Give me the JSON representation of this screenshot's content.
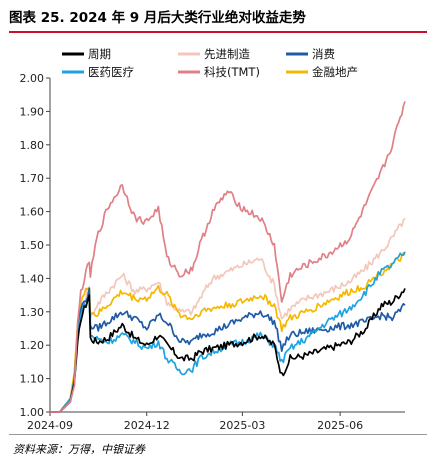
{
  "title": "图表 25. 2024 年 9 月后大类行业绝对收益走势",
  "source": "资料来源：万得，中银证券",
  "chart_data": {
    "type": "line",
    "ylim": [
      1.0,
      2.0
    ],
    "yticks": [
      "1.00",
      "1.10",
      "1.20",
      "1.30",
      "1.40",
      "1.50",
      "1.60",
      "1.70",
      "1.80",
      "1.90",
      "2.00"
    ],
    "xlim": [
      "2024-09-01",
      "2025-08-01"
    ],
    "xticks": [
      "2024-09",
      "2024-12",
      "2025-03",
      "2025-06"
    ],
    "legend_position": "top",
    "grid": false,
    "series": [
      {
        "name": "周期",
        "color": "#000000",
        "x": [
          "2024-09-01",
          "2024-09-10",
          "2024-09-20",
          "2024-09-24",
          "2024-09-27",
          "2024-09-30",
          "2024-10-08",
          "2024-10-09",
          "2024-10-15",
          "2024-10-25",
          "2024-11-08",
          "2024-11-20",
          "2024-12-01",
          "2024-12-12",
          "2024-12-20",
          "2025-01-02",
          "2025-01-13",
          "2025-01-20",
          "2025-02-01",
          "2025-02-15",
          "2025-03-01",
          "2025-03-18",
          "2025-03-31",
          "2025-04-07",
          "2025-04-15",
          "2025-04-30",
          "2025-05-20",
          "2025-06-10",
          "2025-06-25",
          "2025-07-10",
          "2025-07-20",
          "2025-08-01"
        ],
        "y": [
          1.0,
          1.0,
          1.03,
          1.09,
          1.2,
          1.28,
          1.35,
          1.22,
          1.21,
          1.22,
          1.26,
          1.22,
          1.2,
          1.23,
          1.2,
          1.16,
          1.16,
          1.18,
          1.19,
          1.2,
          1.21,
          1.23,
          1.2,
          1.11,
          1.16,
          1.17,
          1.19,
          1.21,
          1.25,
          1.32,
          1.33,
          1.37
        ]
      },
      {
        "name": "先进制造",
        "color": "#f4c7bb",
        "x": [
          "2024-09-01",
          "2024-09-10",
          "2024-09-20",
          "2024-09-24",
          "2024-09-27",
          "2024-09-30",
          "2024-10-08",
          "2024-10-09",
          "2024-10-15",
          "2024-10-25",
          "2024-11-08",
          "2024-11-20",
          "2024-12-01",
          "2024-12-12",
          "2024-12-20",
          "2025-01-02",
          "2025-01-13",
          "2025-01-20",
          "2025-02-01",
          "2025-02-15",
          "2025-03-01",
          "2025-03-18",
          "2025-03-31",
          "2025-04-07",
          "2025-04-15",
          "2025-04-30",
          "2025-05-20",
          "2025-06-10",
          "2025-06-25",
          "2025-07-10",
          "2025-07-20",
          "2025-08-01"
        ],
        "y": [
          1.0,
          1.0,
          1.03,
          1.08,
          1.24,
          1.3,
          1.38,
          1.28,
          1.32,
          1.36,
          1.41,
          1.36,
          1.37,
          1.39,
          1.33,
          1.3,
          1.3,
          1.34,
          1.4,
          1.42,
          1.44,
          1.46,
          1.38,
          1.28,
          1.31,
          1.34,
          1.36,
          1.39,
          1.43,
          1.48,
          1.52,
          1.58
        ]
      },
      {
        "name": "消费",
        "color": "#1f5aa6",
        "x": [
          "2024-09-01",
          "2024-09-10",
          "2024-09-20",
          "2024-09-24",
          "2024-09-27",
          "2024-09-30",
          "2024-10-08",
          "2024-10-09",
          "2024-10-15",
          "2024-10-25",
          "2024-11-08",
          "2024-11-20",
          "2024-12-01",
          "2024-12-12",
          "2024-12-20",
          "2025-01-02",
          "2025-01-13",
          "2025-01-20",
          "2025-02-01",
          "2025-02-15",
          "2025-03-01",
          "2025-03-18",
          "2025-03-31",
          "2025-04-07",
          "2025-04-15",
          "2025-04-30",
          "2025-05-20",
          "2025-06-10",
          "2025-06-25",
          "2025-07-10",
          "2025-07-20",
          "2025-08-01"
        ],
        "y": [
          1.0,
          1.0,
          1.03,
          1.1,
          1.24,
          1.31,
          1.36,
          1.26,
          1.25,
          1.27,
          1.3,
          1.28,
          1.25,
          1.29,
          1.27,
          1.21,
          1.21,
          1.23,
          1.24,
          1.26,
          1.28,
          1.3,
          1.27,
          1.19,
          1.23,
          1.24,
          1.25,
          1.26,
          1.27,
          1.29,
          1.28,
          1.32
        ]
      },
      {
        "name": "医药医疗",
        "color": "#1ea3e0",
        "x": [
          "2024-09-01",
          "2024-09-10",
          "2024-09-20",
          "2024-09-24",
          "2024-09-27",
          "2024-09-30",
          "2024-10-08",
          "2024-10-09",
          "2024-10-15",
          "2024-10-25",
          "2024-11-08",
          "2024-11-20",
          "2024-12-01",
          "2024-12-12",
          "2024-12-20",
          "2025-01-02",
          "2025-01-13",
          "2025-01-20",
          "2025-02-01",
          "2025-02-15",
          "2025-03-01",
          "2025-03-18",
          "2025-03-31",
          "2025-04-07",
          "2025-04-15",
          "2025-04-30",
          "2025-05-20",
          "2025-06-10",
          "2025-06-25",
          "2025-07-10",
          "2025-07-20",
          "2025-08-01"
        ],
        "y": [
          1.0,
          1.0,
          1.04,
          1.09,
          1.22,
          1.3,
          1.34,
          1.23,
          1.22,
          1.21,
          1.23,
          1.21,
          1.19,
          1.21,
          1.16,
          1.12,
          1.13,
          1.16,
          1.18,
          1.2,
          1.21,
          1.23,
          1.2,
          1.15,
          1.19,
          1.22,
          1.27,
          1.31,
          1.36,
          1.42,
          1.44,
          1.48
        ]
      },
      {
        "name": "科技(TMT)",
        "color": "#e07f86",
        "x": [
          "2024-09-01",
          "2024-09-10",
          "2024-09-20",
          "2024-09-24",
          "2024-09-27",
          "2024-09-30",
          "2024-10-08",
          "2024-10-09",
          "2024-10-15",
          "2024-10-25",
          "2024-11-08",
          "2024-11-20",
          "2024-12-01",
          "2024-12-12",
          "2024-12-20",
          "2025-01-02",
          "2025-01-13",
          "2025-01-20",
          "2025-02-01",
          "2025-02-15",
          "2025-03-01",
          "2025-03-18",
          "2025-03-31",
          "2025-04-07",
          "2025-04-15",
          "2025-04-30",
          "2025-05-20",
          "2025-06-10",
          "2025-06-25",
          "2025-07-10",
          "2025-07-20",
          "2025-08-01"
        ],
        "y": [
          1.0,
          1.0,
          1.03,
          1.08,
          1.26,
          1.36,
          1.45,
          1.41,
          1.52,
          1.61,
          1.68,
          1.58,
          1.57,
          1.61,
          1.46,
          1.41,
          1.43,
          1.5,
          1.6,
          1.66,
          1.61,
          1.58,
          1.5,
          1.33,
          1.41,
          1.44,
          1.47,
          1.52,
          1.62,
          1.72,
          1.8,
          1.93
        ]
      },
      {
        "name": "金融地产",
        "color": "#f5b800",
        "x": [
          "2024-09-01",
          "2024-09-10",
          "2024-09-20",
          "2024-09-24",
          "2024-09-27",
          "2024-09-30",
          "2024-10-08",
          "2024-10-09",
          "2024-10-15",
          "2024-10-25",
          "2024-11-08",
          "2024-11-20",
          "2024-12-01",
          "2024-12-12",
          "2024-12-20",
          "2025-01-02",
          "2025-01-13",
          "2025-01-20",
          "2025-02-01",
          "2025-02-15",
          "2025-03-01",
          "2025-03-18",
          "2025-03-31",
          "2025-04-07",
          "2025-04-15",
          "2025-04-30",
          "2025-05-20",
          "2025-06-10",
          "2025-06-25",
          "2025-07-10",
          "2025-07-20",
          "2025-08-01"
        ],
        "y": [
          1.0,
          1.0,
          1.04,
          1.12,
          1.27,
          1.33,
          1.38,
          1.3,
          1.29,
          1.32,
          1.36,
          1.34,
          1.34,
          1.37,
          1.35,
          1.29,
          1.28,
          1.3,
          1.31,
          1.32,
          1.33,
          1.35,
          1.32,
          1.25,
          1.28,
          1.3,
          1.33,
          1.36,
          1.38,
          1.42,
          1.44,
          1.47
        ]
      }
    ]
  }
}
